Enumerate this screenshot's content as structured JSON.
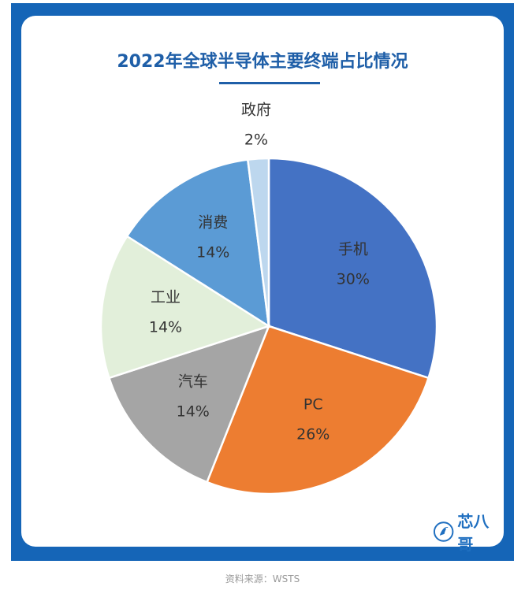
{
  "title": "2022年全球半导体主要终端占比情况",
  "source": "资料来源：WSTS",
  "brand": "芯八哥",
  "colors": {
    "frame": "#1565b7",
    "title": "#1f5fa8"
  },
  "chart_data": {
    "type": "pie",
    "title": "2022年全球半导体主要终端占比情况",
    "slices": [
      {
        "label": "手机",
        "value": 30,
        "value_label": "30%",
        "color": "#4472c4"
      },
      {
        "label": "PC",
        "value": 26,
        "value_label": "26%",
        "color": "#ed7d31"
      },
      {
        "label": "汽车",
        "value": 14,
        "value_label": "14%",
        "color": "#a5a5a5"
      },
      {
        "label": "工业",
        "value": 14,
        "value_label": "14%",
        "color": "#e2efda"
      },
      {
        "label": "消费",
        "value": 14,
        "value_label": "14%",
        "color": "#5b9bd5"
      },
      {
        "label": "政府",
        "value": 2,
        "value_label": "2%",
        "color": "#bdd7ee"
      }
    ],
    "start_angle_deg": 0,
    "direction": "clockwise",
    "legend": "none"
  }
}
